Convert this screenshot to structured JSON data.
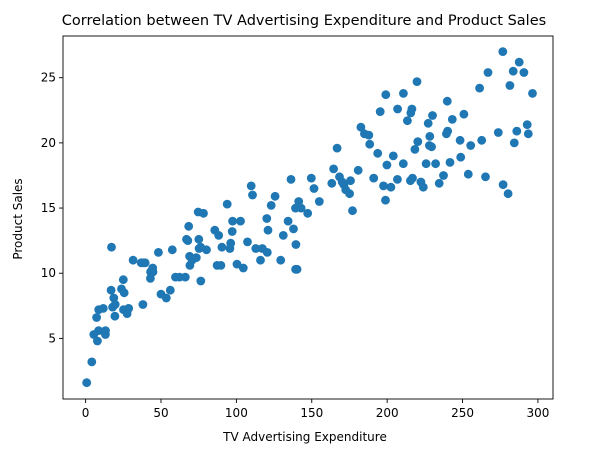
{
  "chart_data": {
    "type": "scatter",
    "title": "Correlation between TV Advertising Expenditure and Product Sales",
    "xlabel": "TV Advertising Expenditure",
    "ylabel": "Product Sales",
    "xlim": [
      -15,
      310
    ],
    "ylim": [
      0.35,
      28.2
    ],
    "xticks": [
      0,
      50,
      100,
      150,
      200,
      250,
      300
    ],
    "yticks": [
      5,
      10,
      15,
      20,
      25
    ],
    "grid": false,
    "legend": "none",
    "color": "#1f77b4",
    "points": [
      [
        0.7,
        1.6
      ],
      [
        4.1,
        3.2
      ],
      [
        5.4,
        5.3
      ],
      [
        7.3,
        6.6
      ],
      [
        7.8,
        4.8
      ],
      [
        8.6,
        5.6
      ],
      [
        8.7,
        7.2
      ],
      [
        11.7,
        7.3
      ],
      [
        13.1,
        5.3
      ],
      [
        13.2,
        5.6
      ],
      [
        16.9,
        8.7
      ],
      [
        17.2,
        12.0
      ],
      [
        17.9,
        7.4
      ],
      [
        18.7,
        8.1
      ],
      [
        19.4,
        6.7
      ],
      [
        19.6,
        7.6
      ],
      [
        23.8,
        8.8
      ],
      [
        25.0,
        9.5
      ],
      [
        25.1,
        7.2
      ],
      [
        25.6,
        8.5
      ],
      [
        27.5,
        6.9
      ],
      [
        28.6,
        7.3
      ],
      [
        31.5,
        11.0
      ],
      [
        36.9,
        10.8
      ],
      [
        38.0,
        7.6
      ],
      [
        38.2,
        10.8
      ],
      [
        39.5,
        10.8
      ],
      [
        43.0,
        9.6
      ],
      [
        43.1,
        10.1
      ],
      [
        44.5,
        10.4
      ],
      [
        44.7,
        10.1
      ],
      [
        48.3,
        11.6
      ],
      [
        50.0,
        8.4
      ],
      [
        53.5,
        8.1
      ],
      [
        56.2,
        8.7
      ],
      [
        57.5,
        11.8
      ],
      [
        59.6,
        9.7
      ],
      [
        62.3,
        9.7
      ],
      [
        66.1,
        9.7
      ],
      [
        66.9,
        12.6
      ],
      [
        67.8,
        12.5
      ],
      [
        68.4,
        13.6
      ],
      [
        69.0,
        11.3
      ],
      [
        69.2,
        10.6
      ],
      [
        70.6,
        11.0
      ],
      [
        73.4,
        11.2
      ],
      [
        74.7,
        14.7
      ],
      [
        75.1,
        12.6
      ],
      [
        75.3,
        11.9
      ],
      [
        76.3,
        12.0
      ],
      [
        76.4,
        9.4
      ],
      [
        78.2,
        14.6
      ],
      [
        80.2,
        11.8
      ],
      [
        85.7,
        13.3
      ],
      [
        87.2,
        10.6
      ],
      [
        88.3,
        12.9
      ],
      [
        89.7,
        10.6
      ],
      [
        90.4,
        12.0
      ],
      [
        93.9,
        15.3
      ],
      [
        95.7,
        11.9
      ],
      [
        96.2,
        12.3
      ],
      [
        97.2,
        13.2
      ],
      [
        97.5,
        14.0
      ],
      [
        100.4,
        10.7
      ],
      [
        102.7,
        14.0
      ],
      [
        104.6,
        10.4
      ],
      [
        107.4,
        12.4
      ],
      [
        109.8,
        16.7
      ],
      [
        110.7,
        16.0
      ],
      [
        112.9,
        11.9
      ],
      [
        116.0,
        11.0
      ],
      [
        117.2,
        11.9
      ],
      [
        120.2,
        14.2
      ],
      [
        120.5,
        11.6
      ],
      [
        121.0,
        13.3
      ],
      [
        123.1,
        15.2
      ],
      [
        125.7,
        15.9
      ],
      [
        129.4,
        11.0
      ],
      [
        131.1,
        12.9
      ],
      [
        134.3,
        14.0
      ],
      [
        136.2,
        17.2
      ],
      [
        137.9,
        13.4
      ],
      [
        139.2,
        15.0
      ],
      [
        139.3,
        10.3
      ],
      [
        139.5,
        12.2
      ],
      [
        140.3,
        10.3
      ],
      [
        141.3,
        15.5
      ],
      [
        142.9,
        15.0
      ],
      [
        147.3,
        14.6
      ],
      [
        149.7,
        17.3
      ],
      [
        151.5,
        16.5
      ],
      [
        155.0,
        15.5
      ],
      [
        163.3,
        16.9
      ],
      [
        164.5,
        18.0
      ],
      [
        166.8,
        19.6
      ],
      [
        168.4,
        17.4
      ],
      [
        170.2,
        17.0
      ],
      [
        171.3,
        16.8
      ],
      [
        172.5,
        16.4
      ],
      [
        175.1,
        16.1
      ],
      [
        175.7,
        17.1
      ],
      [
        177.0,
        14.8
      ],
      [
        180.8,
        17.9
      ],
      [
        182.6,
        21.2
      ],
      [
        184.9,
        20.7
      ],
      [
        187.8,
        20.6
      ],
      [
        188.4,
        19.9
      ],
      [
        191.1,
        17.3
      ],
      [
        193.7,
        19.2
      ],
      [
        195.4,
        22.4
      ],
      [
        197.6,
        16.7
      ],
      [
        198.9,
        15.6
      ],
      [
        199.1,
        23.7
      ],
      [
        199.8,
        18.3
      ],
      [
        202.5,
        16.6
      ],
      [
        204.1,
        19.0
      ],
      [
        206.8,
        17.2
      ],
      [
        206.9,
        22.6
      ],
      [
        210.7,
        18.4
      ],
      [
        210.8,
        23.8
      ],
      [
        213.4,
        21.7
      ],
      [
        215.4,
        17.1
      ],
      [
        215.7,
        22.3
      ],
      [
        216.4,
        22.6
      ],
      [
        216.8,
        17.3
      ],
      [
        218.4,
        19.5
      ],
      [
        219.8,
        24.7
      ],
      [
        220.3,
        20.1
      ],
      [
        222.4,
        17.0
      ],
      [
        224.0,
        16.6
      ],
      [
        225.8,
        18.4
      ],
      [
        227.2,
        21.5
      ],
      [
        228.0,
        19.8
      ],
      [
        228.3,
        20.5
      ],
      [
        229.5,
        19.7
      ],
      [
        230.1,
        22.1
      ],
      [
        232.1,
        18.4
      ],
      [
        234.5,
        16.9
      ],
      [
        237.4,
        17.5
      ],
      [
        239.3,
        20.7
      ],
      [
        239.9,
        23.2
      ],
      [
        240.1,
        20.9
      ],
      [
        241.7,
        18.5
      ],
      [
        243.2,
        21.8
      ],
      [
        248.4,
        20.2
      ],
      [
        248.8,
        18.9
      ],
      [
        250.9,
        22.2
      ],
      [
        253.8,
        17.6
      ],
      [
        255.4,
        19.8
      ],
      [
        261.3,
        24.2
      ],
      [
        262.7,
        20.2
      ],
      [
        265.2,
        17.4
      ],
      [
        266.9,
        25.4
      ],
      [
        273.7,
        20.8
      ],
      [
        276.7,
        27.0
      ],
      [
        276.9,
        16.8
      ],
      [
        280.2,
        16.1
      ],
      [
        281.4,
        24.4
      ],
      [
        283.6,
        25.5
      ],
      [
        284.3,
        20.0
      ],
      [
        286.0,
        20.9
      ],
      [
        287.6,
        26.2
      ],
      [
        290.7,
        25.4
      ],
      [
        292.9,
        21.4
      ],
      [
        293.6,
        20.7
      ],
      [
        296.4,
        23.8
      ]
    ]
  }
}
